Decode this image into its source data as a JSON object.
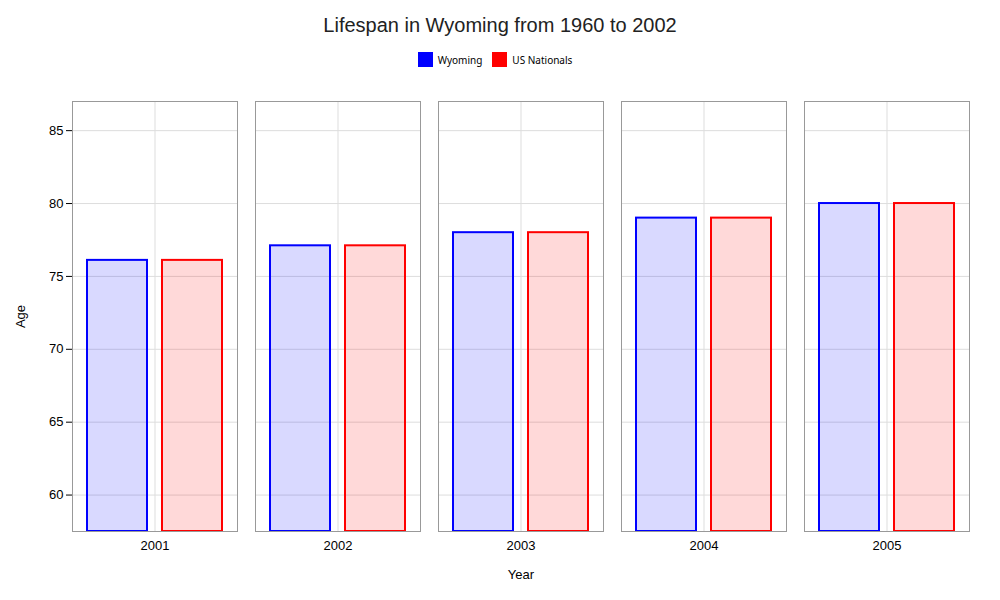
{
  "chart_data": {
    "type": "bar",
    "title": "Lifespan in Wyoming from 1960 to 2002",
    "xlabel": "Year",
    "ylabel": "Age",
    "categories": [
      "2001",
      "2002",
      "2003",
      "2004",
      "2005"
    ],
    "series": [
      {
        "name": "Wyoming",
        "color": "#0000ff",
        "values": [
          76.1,
          77.1,
          78.0,
          79.0,
          80.0
        ]
      },
      {
        "name": "US Nationals",
        "color": "#ff0000",
        "values": [
          76.1,
          77.1,
          78.0,
          79.0,
          80.0
        ]
      }
    ],
    "ylim": [
      57.5,
      87
    ],
    "yticks": [
      60,
      65,
      70,
      75,
      80,
      85
    ],
    "grid": true,
    "legend": "top"
  }
}
